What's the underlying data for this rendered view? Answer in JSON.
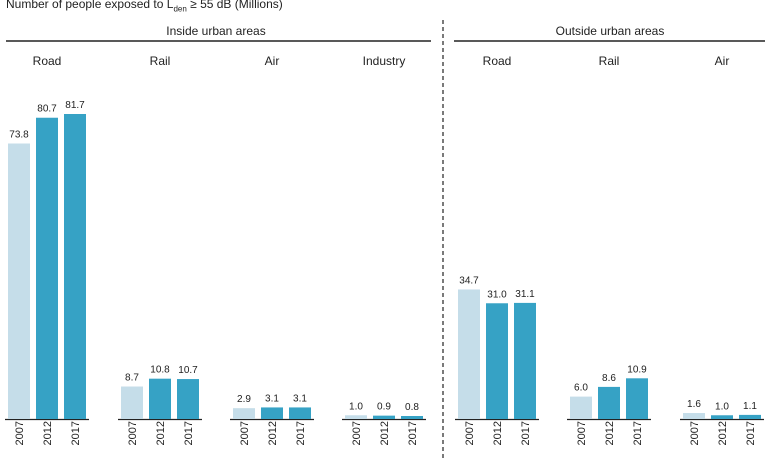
{
  "chart_data": {
    "type": "bar",
    "title_prefix": "Number of people exposed to L",
    "title_subscript": "den",
    "title_suffix": " ≥ 55 dB (Millions)",
    "ylim": [
      0,
      81.7
    ],
    "grid": false,
    "legend": "none",
    "colors": {
      "light": "#c5dde9",
      "dark": "#36a2c5"
    },
    "years": [
      "2007",
      "2012",
      "2017"
    ],
    "groups": [
      {
        "name": "Inside urban areas",
        "panels": [
          {
            "name": "Road",
            "values": [
              73.8,
              80.7,
              81.7
            ],
            "labels": [
              "73.8",
              "80.7",
              "81.7"
            ]
          },
          {
            "name": "Rail",
            "values": [
              8.7,
              10.8,
              10.7
            ],
            "labels": [
              "8.7",
              "10.8",
              "10.7"
            ]
          },
          {
            "name": "Air",
            "values": [
              2.9,
              3.1,
              3.1
            ],
            "labels": [
              "2.9",
              "3.1",
              "3.1"
            ]
          },
          {
            "name": "Industry",
            "values": [
              1.0,
              0.9,
              0.8
            ],
            "labels": [
              "1.0",
              "0.9",
              "0.8"
            ]
          }
        ]
      },
      {
        "name": "Outside urban areas",
        "panels": [
          {
            "name": "Road",
            "values": [
              34.7,
              31.0,
              31.1
            ],
            "labels": [
              "34.7",
              "31.0",
              "31.1"
            ]
          },
          {
            "name": "Rail",
            "values": [
              6.0,
              8.6,
              10.9
            ],
            "labels": [
              "6.0",
              "8.6",
              "10.9"
            ]
          },
          {
            "name": "Air",
            "values": [
              1.6,
              1.0,
              1.1
            ],
            "labels": [
              "1.6",
              "1.0",
              "1.1"
            ]
          }
        ]
      }
    ]
  }
}
